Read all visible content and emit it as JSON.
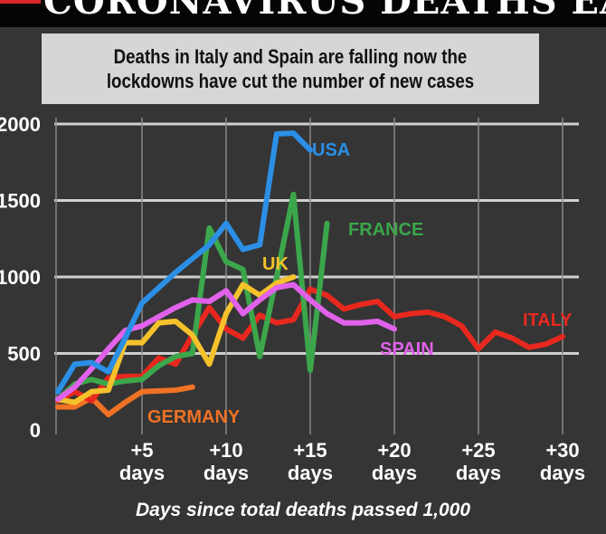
{
  "header": {
    "title": "CORONAVIRUS DEATHS EACH DAY",
    "subtitle": "Deaths in Italy and Spain are falling now the lockdowns have cut the number of new cases"
  },
  "chart_data": {
    "type": "line",
    "title": "CORONAVIRUS DEATHS EACH DAY",
    "subtitle": "Deaths in Italy and Spain are falling now the lockdowns have cut the number of new cases",
    "xlabel": "Days since total deaths passed 1,000",
    "ylabel": "",
    "xlim": [
      0,
      31
    ],
    "ylim": [
      0,
      2000
    ],
    "yticks": [
      0,
      500,
      1000,
      1500,
      2000
    ],
    "ytick_labels": [
      "0",
      "500",
      "1000",
      "1500",
      "2000"
    ],
    "xticks": [
      5,
      10,
      15,
      20,
      25,
      30
    ],
    "xtick_labels": [
      [
        "+5",
        "days"
      ],
      [
        "+10",
        "days"
      ],
      [
        "+15",
        "days"
      ],
      [
        "+20",
        "days"
      ],
      [
        "+25",
        "days"
      ],
      [
        "+30",
        "days"
      ]
    ],
    "grid": true,
    "series": [
      {
        "name": "GERMANY",
        "color": "#f07224",
        "x": [
          0,
          1,
          2,
          3,
          4,
          5,
          6,
          7,
          8
        ],
        "values": [
          150,
          150,
          210,
          100,
          180,
          250,
          255,
          260,
          280
        ]
      },
      {
        "name": "ITALY",
        "color": "#e8281e",
        "x": [
          0,
          1,
          2,
          3,
          4,
          5,
          6,
          7,
          8,
          9,
          10,
          11,
          12,
          13,
          14,
          15,
          16,
          17,
          18,
          19,
          20,
          21,
          22,
          23,
          24,
          25,
          26,
          27,
          28,
          29,
          30
        ],
        "values": [
          190,
          250,
          190,
          340,
          350,
          350,
          470,
          430,
          620,
          800,
          660,
          600,
          750,
          700,
          720,
          920,
          880,
          790,
          820,
          840,
          740,
          760,
          770,
          740,
          680,
          530,
          640,
          600,
          540,
          560,
          610
        ]
      },
      {
        "name": "FRANCE",
        "color": "#3ca64b",
        "x": [
          0,
          1,
          2,
          3,
          4,
          5,
          6,
          7,
          8,
          9,
          10,
          11,
          12,
          13,
          14,
          15,
          16
        ],
        "values": [
          200,
          300,
          330,
          300,
          320,
          330,
          420,
          480,
          500,
          1320,
          1100,
          1050,
          480,
          1000,
          1540,
          390,
          1350
        ]
      },
      {
        "name": "UK",
        "color": "#f6c22c",
        "x": [
          0,
          1,
          2,
          3,
          4,
          5,
          6,
          7,
          8,
          9,
          10,
          11,
          12,
          13,
          14
        ],
        "values": [
          200,
          180,
          250,
          260,
          570,
          570,
          700,
          710,
          620,
          430,
          760,
          950,
          880,
          960,
          1000
        ]
      },
      {
        "name": "SPAIN",
        "color": "#e062ea",
        "x": [
          0,
          1,
          2,
          3,
          4,
          5,
          6,
          7,
          8,
          9,
          10,
          11,
          12,
          13,
          14,
          15,
          16,
          17,
          18,
          19,
          20
        ],
        "values": [
          200,
          280,
          400,
          530,
          650,
          680,
          740,
          800,
          850,
          840,
          910,
          760,
          850,
          930,
          950,
          850,
          760,
          700,
          700,
          710,
          660
        ]
      },
      {
        "name": "USA",
        "color": "#2b8fe6",
        "x": [
          0,
          1,
          2,
          3,
          4,
          5,
          6,
          7,
          8,
          9,
          10,
          11,
          12,
          13,
          14,
          15
        ],
        "values": [
          250,
          430,
          440,
          380,
          600,
          830,
          930,
          1030,
          1120,
          1210,
          1350,
          1180,
          1210,
          1935,
          1940,
          1830
        ]
      }
    ]
  }
}
